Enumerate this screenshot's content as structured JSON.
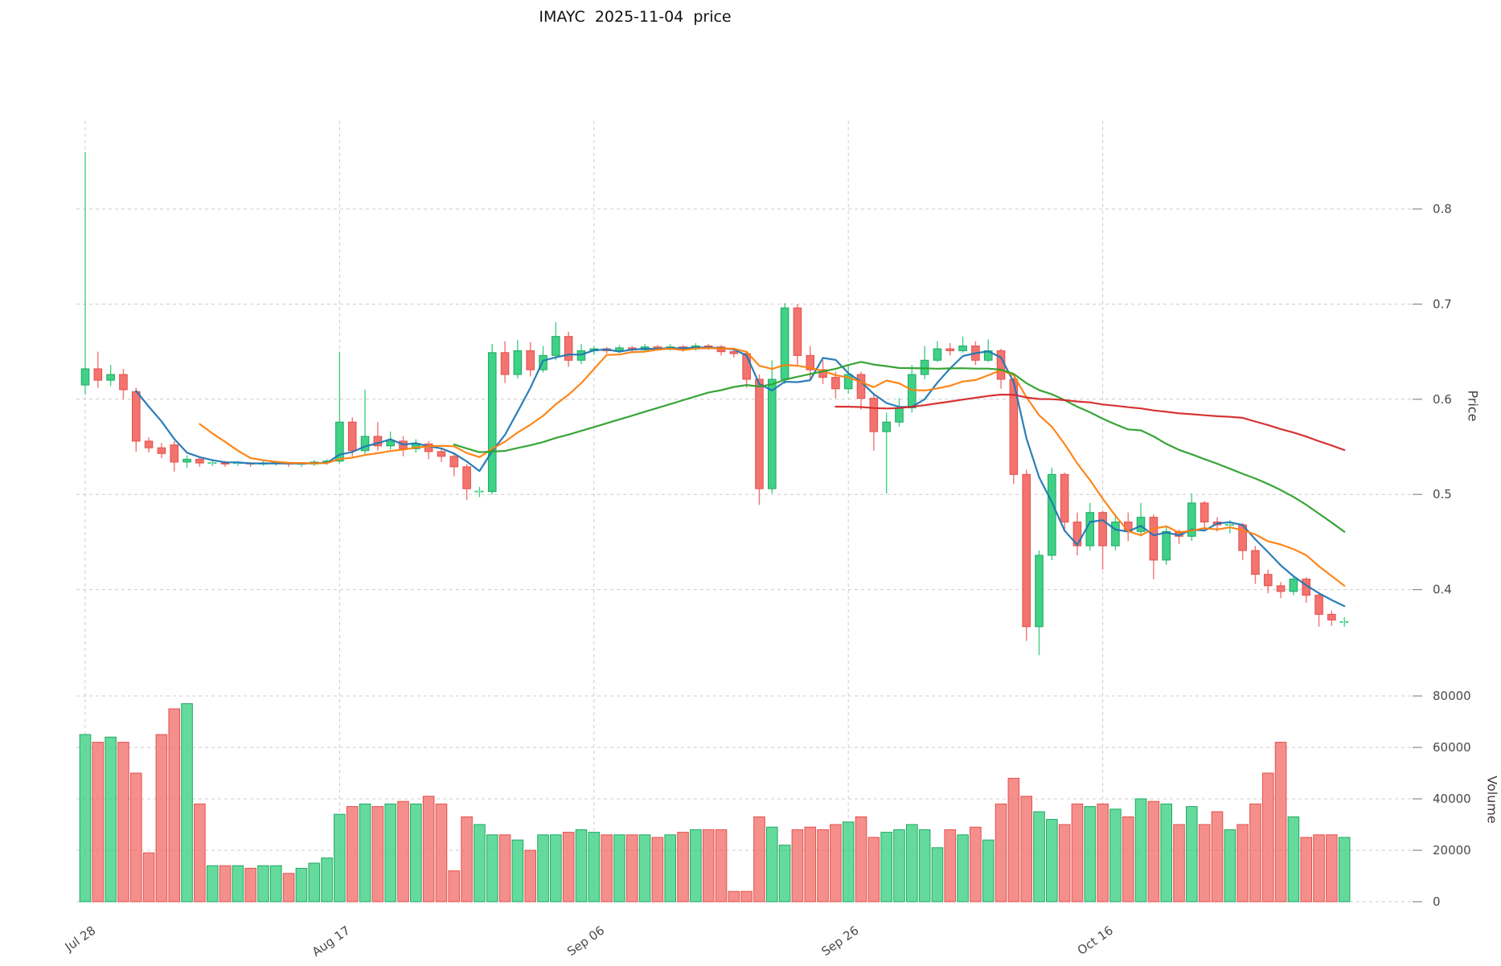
{
  "title": "IMAYC  2025-11-04  price",
  "axes": {
    "price_label": "Price",
    "volume_label": "Volume",
    "price_ticks": [
      0.4,
      0.5,
      0.6,
      0.7,
      0.8
    ],
    "volume_ticks": [
      0,
      20000,
      40000,
      60000,
      80000
    ],
    "x_ticks": [
      {
        "index": 0,
        "label": "Jul 28"
      },
      {
        "index": 20,
        "label": "Aug 17"
      },
      {
        "index": 40,
        "label": "Sep 06"
      },
      {
        "index": 60,
        "label": "Sep 26"
      },
      {
        "index": 80,
        "label": "Oct 16"
      }
    ]
  },
  "colors": {
    "up": "#3fd185",
    "down": "#f3736f",
    "up_edge": "#1fa864",
    "down_edge": "#e2514d",
    "ma": [
      "#1f77b4",
      "#ff7f0e",
      "#2ca02c",
      "#d62728"
    ],
    "grid": "#cccccc",
    "text": "#4a4a4a"
  },
  "chart_data": {
    "type": "candlestick+volume",
    "title": "IMAYC  2025-11-04  price",
    "ylabel": "Price",
    "ylabel2": "Volume",
    "price_ylim": [
      0.32,
      0.88
    ],
    "volume_ylim": [
      0,
      80000
    ],
    "grid": true,
    "legend": false,
    "moving_averages": [
      {
        "window": 5,
        "color": "#1f77b4"
      },
      {
        "window": 10,
        "color": "#ff7f0e"
      },
      {
        "window": 30,
        "color": "#2ca02c"
      },
      {
        "window": 60,
        "color": "#d62728"
      }
    ],
    "x": [
      "2025-07-28",
      "2025-07-29",
      "2025-07-30",
      "2025-07-31",
      "2025-08-01",
      "2025-08-02",
      "2025-08-03",
      "2025-08-04",
      "2025-08-05",
      "2025-08-06",
      "2025-08-07",
      "2025-08-08",
      "2025-08-09",
      "2025-08-10",
      "2025-08-11",
      "2025-08-12",
      "2025-08-13",
      "2025-08-14",
      "2025-08-15",
      "2025-08-16",
      "2025-08-17",
      "2025-08-18",
      "2025-08-19",
      "2025-08-20",
      "2025-08-21",
      "2025-08-22",
      "2025-08-23",
      "2025-08-24",
      "2025-08-25",
      "2025-08-26",
      "2025-08-27",
      "2025-08-28",
      "2025-08-29",
      "2025-08-30",
      "2025-08-31",
      "2025-09-01",
      "2025-09-02",
      "2025-09-03",
      "2025-09-04",
      "2025-09-05",
      "2025-09-06",
      "2025-09-07",
      "2025-09-08",
      "2025-09-09",
      "2025-09-10",
      "2025-09-11",
      "2025-09-12",
      "2025-09-13",
      "2025-09-14",
      "2025-09-15",
      "2025-09-16",
      "2025-09-17",
      "2025-09-18",
      "2025-09-19",
      "2025-09-20",
      "2025-09-21",
      "2025-09-22",
      "2025-09-23",
      "2025-09-24",
      "2025-09-25",
      "2025-09-26",
      "2025-09-27",
      "2025-09-28",
      "2025-09-29",
      "2025-09-30",
      "2025-10-01",
      "2025-10-02",
      "2025-10-03",
      "2025-10-04",
      "2025-10-05",
      "2025-10-06",
      "2025-10-07",
      "2025-10-08",
      "2025-10-09",
      "2025-10-10",
      "2025-10-11",
      "2025-10-12",
      "2025-10-13",
      "2025-10-14",
      "2025-10-15",
      "2025-10-16",
      "2025-10-17",
      "2025-10-18",
      "2025-10-19",
      "2025-10-20",
      "2025-10-21",
      "2025-10-22",
      "2025-10-23",
      "2025-10-24",
      "2025-10-25",
      "2025-10-26",
      "2025-10-27",
      "2025-10-28",
      "2025-10-29",
      "2025-10-30",
      "2025-10-31",
      "2025-11-01",
      "2025-11-02",
      "2025-11-03",
      "2025-11-04"
    ],
    "ohlc": {
      "open": [
        0.615,
        0.632,
        0.62,
        0.626,
        0.608,
        0.556,
        0.549,
        0.552,
        0.534,
        0.537,
        0.533,
        0.533,
        0.533,
        0.533,
        0.532,
        0.533,
        0.533,
        0.532,
        0.532,
        0.534,
        0.535,
        0.576,
        0.546,
        0.561,
        0.551,
        0.556,
        0.548,
        0.553,
        0.545,
        0.54,
        0.529,
        0.503,
        0.503,
        0.649,
        0.626,
        0.651,
        0.631,
        0.646,
        0.666,
        0.641,
        0.651,
        0.653,
        0.651,
        0.654,
        0.652,
        0.655,
        0.653,
        0.655,
        0.653,
        0.656,
        0.655,
        0.65,
        0.648,
        0.621,
        0.506,
        0.621,
        0.696,
        0.646,
        0.631,
        0.623,
        0.611,
        0.626,
        0.601,
        0.566,
        0.576,
        0.591,
        0.626,
        0.641,
        0.653,
        0.651,
        0.656,
        0.641,
        0.651,
        0.621,
        0.521,
        0.361,
        0.436,
        0.521,
        0.471,
        0.446,
        0.481,
        0.446,
        0.471,
        0.461,
        0.476,
        0.431,
        0.461,
        0.456,
        0.491,
        0.471,
        0.468,
        0.468,
        0.441,
        0.416,
        0.404,
        0.398,
        0.411,
        0.394,
        0.374,
        0.366
      ],
      "high": [
        0.86,
        0.65,
        0.636,
        0.632,
        0.612,
        0.56,
        0.554,
        0.556,
        0.541,
        0.54,
        0.536,
        0.535,
        0.535,
        0.534,
        0.535,
        0.535,
        0.534,
        0.534,
        0.536,
        0.537,
        0.65,
        0.581,
        0.61,
        0.576,
        0.566,
        0.561,
        0.558,
        0.556,
        0.549,
        0.543,
        0.532,
        0.508,
        0.658,
        0.661,
        0.662,
        0.66,
        0.656,
        0.681,
        0.671,
        0.658,
        0.656,
        0.655,
        0.657,
        0.656,
        0.658,
        0.657,
        0.658,
        0.657,
        0.659,
        0.658,
        0.657,
        0.652,
        0.651,
        0.626,
        0.641,
        0.701,
        0.7,
        0.656,
        0.641,
        0.629,
        0.636,
        0.629,
        0.606,
        0.586,
        0.601,
        0.636,
        0.656,
        0.661,
        0.659,
        0.666,
        0.661,
        0.663,
        0.653,
        0.623,
        0.526,
        0.441,
        0.528,
        0.523,
        0.481,
        0.491,
        0.483,
        0.479,
        0.481,
        0.491,
        0.479,
        0.466,
        0.463,
        0.501,
        0.493,
        0.476,
        0.473,
        0.47,
        0.446,
        0.421,
        0.408,
        0.414,
        0.413,
        0.397,
        0.378,
        0.371
      ],
      "low": [
        0.605,
        0.612,
        0.614,
        0.6,
        0.545,
        0.544,
        0.538,
        0.524,
        0.528,
        0.529,
        0.53,
        0.529,
        0.53,
        0.529,
        0.53,
        0.53,
        0.529,
        0.529,
        0.53,
        0.531,
        0.532,
        0.54,
        0.542,
        0.546,
        0.547,
        0.54,
        0.544,
        0.537,
        0.534,
        0.519,
        0.494,
        0.497,
        0.5,
        0.617,
        0.622,
        0.624,
        0.628,
        0.641,
        0.634,
        0.637,
        0.647,
        0.648,
        0.649,
        0.649,
        0.65,
        0.651,
        0.651,
        0.65,
        0.651,
        0.652,
        0.646,
        0.644,
        0.612,
        0.489,
        0.501,
        0.616,
        0.636,
        0.621,
        0.616,
        0.601,
        0.606,
        0.589,
        0.546,
        0.501,
        0.571,
        0.586,
        0.621,
        0.639,
        0.646,
        0.649,
        0.636,
        0.639,
        0.611,
        0.511,
        0.346,
        0.331,
        0.431,
        0.461,
        0.436,
        0.441,
        0.421,
        0.441,
        0.451,
        0.456,
        0.411,
        0.426,
        0.448,
        0.451,
        0.463,
        0.461,
        0.459,
        0.431,
        0.406,
        0.396,
        0.391,
        0.394,
        0.386,
        0.361,
        0.362,
        0.361
      ],
      "close": [
        0.632,
        0.62,
        0.626,
        0.61,
        0.556,
        0.549,
        0.543,
        0.534,
        0.537,
        0.533,
        0.533,
        0.532,
        0.533,
        0.532,
        0.533,
        0.533,
        0.532,
        0.532,
        0.534,
        0.535,
        0.576,
        0.546,
        0.561,
        0.551,
        0.556,
        0.548,
        0.553,
        0.545,
        0.54,
        0.529,
        0.506,
        0.503,
        0.649,
        0.626,
        0.651,
        0.631,
        0.646,
        0.666,
        0.641,
        0.651,
        0.653,
        0.651,
        0.654,
        0.652,
        0.655,
        0.653,
        0.655,
        0.653,
        0.656,
        0.655,
        0.65,
        0.648,
        0.621,
        0.506,
        0.621,
        0.696,
        0.646,
        0.631,
        0.623,
        0.611,
        0.626,
        0.601,
        0.566,
        0.576,
        0.591,
        0.626,
        0.641,
        0.653,
        0.651,
        0.656,
        0.641,
        0.651,
        0.621,
        0.521,
        0.361,
        0.436,
        0.521,
        0.471,
        0.446,
        0.481,
        0.446,
        0.471,
        0.461,
        0.476,
        0.431,
        0.461,
        0.456,
        0.491,
        0.471,
        0.468,
        0.468,
        0.441,
        0.416,
        0.404,
        0.398,
        0.411,
        0.394,
        0.374,
        0.368,
        0.366
      ]
    },
    "volume": [
      65000,
      62000,
      64000,
      62000,
      50000,
      19000,
      65000,
      75000,
      77000,
      38000,
      14000,
      14000,
      14000,
      13000,
      14000,
      14000,
      11000,
      13000,
      15000,
      17000,
      34000,
      37000,
      38000,
      37000,
      38000,
      39000,
      38000,
      41000,
      38000,
      12000,
      33000,
      30000,
      26000,
      26000,
      24000,
      20000,
      26000,
      26000,
      27000,
      28000,
      27000,
      26000,
      26000,
      26000,
      26000,
      25000,
      26000,
      27000,
      28000,
      28000,
      28000,
      4000,
      4000,
      33000,
      29000,
      22000,
      28000,
      29000,
      28000,
      30000,
      31000,
      33000,
      25000,
      27000,
      28000,
      30000,
      28000,
      21000,
      28000,
      26000,
      29000,
      24000,
      38000,
      48000,
      41000,
      35000,
      32000,
      30000,
      38000,
      37000,
      38000,
      36000,
      33000,
      40000,
      39000,
      38000,
      30000,
      37000,
      30000,
      35000,
      28000,
      30000,
      38000,
      50000,
      62000,
      33000,
      25000,
      26000,
      26000,
      25000
    ]
  }
}
